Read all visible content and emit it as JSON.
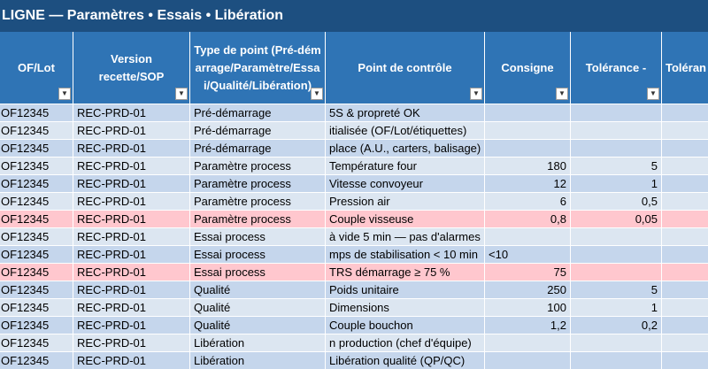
{
  "title": "LIGNE — Paramètres • Essais • Libération",
  "table": {
    "headers": [
      "OF/Lot",
      "Version recette/SOP",
      "Type de point (Pré-démarrage/Paramètre/Essai/Qualité/Libération)",
      "Point de contrôle",
      "Consigne",
      "Tolérance -",
      "Toléran"
    ],
    "rows": [
      [
        "OF12345",
        "REC-PRD-01",
        "Pré-démarrage",
        "5S & propreté OK",
        "",
        ""
      ],
      [
        "OF12345",
        "REC-PRD-01",
        "Pré-démarrage",
        "itialisée (OF/Lot/étiquettes)",
        "",
        ""
      ],
      [
        "OF12345",
        "REC-PRD-01",
        "Pré-démarrage",
        "place (A.U., carters, balisage)",
        "",
        ""
      ],
      [
        "OF12345",
        "REC-PRD-01",
        "Paramètre process",
        "Température four",
        "180",
        "5"
      ],
      [
        "OF12345",
        "REC-PRD-01",
        "Paramètre process",
        "Vitesse convoyeur",
        "12",
        "1"
      ],
      [
        "OF12345",
        "REC-PRD-01",
        "Paramètre process",
        "Pression air",
        "6",
        "0,5"
      ],
      [
        "OF12345",
        "REC-PRD-01",
        "Paramètre process",
        "Couple visseuse",
        "0,8",
        "0,05"
      ],
      [
        "OF12345",
        "REC-PRD-01",
        "Essai process",
        "à vide 5 min — pas d'alarmes",
        "",
        ""
      ],
      [
        "OF12345",
        "REC-PRD-01",
        "Essai process",
        "mps de stabilisation < 10 min",
        "<10",
        ""
      ],
      [
        "OF12345",
        "REC-PRD-01",
        "Essai process",
        "TRS démarrage ≥ 75 %",
        "75",
        ""
      ],
      [
        "OF12345",
        "REC-PRD-01",
        "Qualité",
        "Poids unitaire",
        "250",
        "5"
      ],
      [
        "OF12345",
        "REC-PRD-01",
        "Qualité",
        "Dimensions",
        "100",
        "1"
      ],
      [
        "OF12345",
        "REC-PRD-01",
        "Qualité",
        "Couple bouchon",
        "1,2",
        "0,2"
      ],
      [
        "OF12345",
        "REC-PRD-01",
        "Libération",
        "n production (chef d'équipe)",
        "",
        ""
      ],
      [
        "OF12345",
        "REC-PRD-01",
        "Libération",
        "Libération qualité (QP/QC)",
        "",
        ""
      ]
    ],
    "highlighted_rows": [
      6,
      9
    ]
  }
}
